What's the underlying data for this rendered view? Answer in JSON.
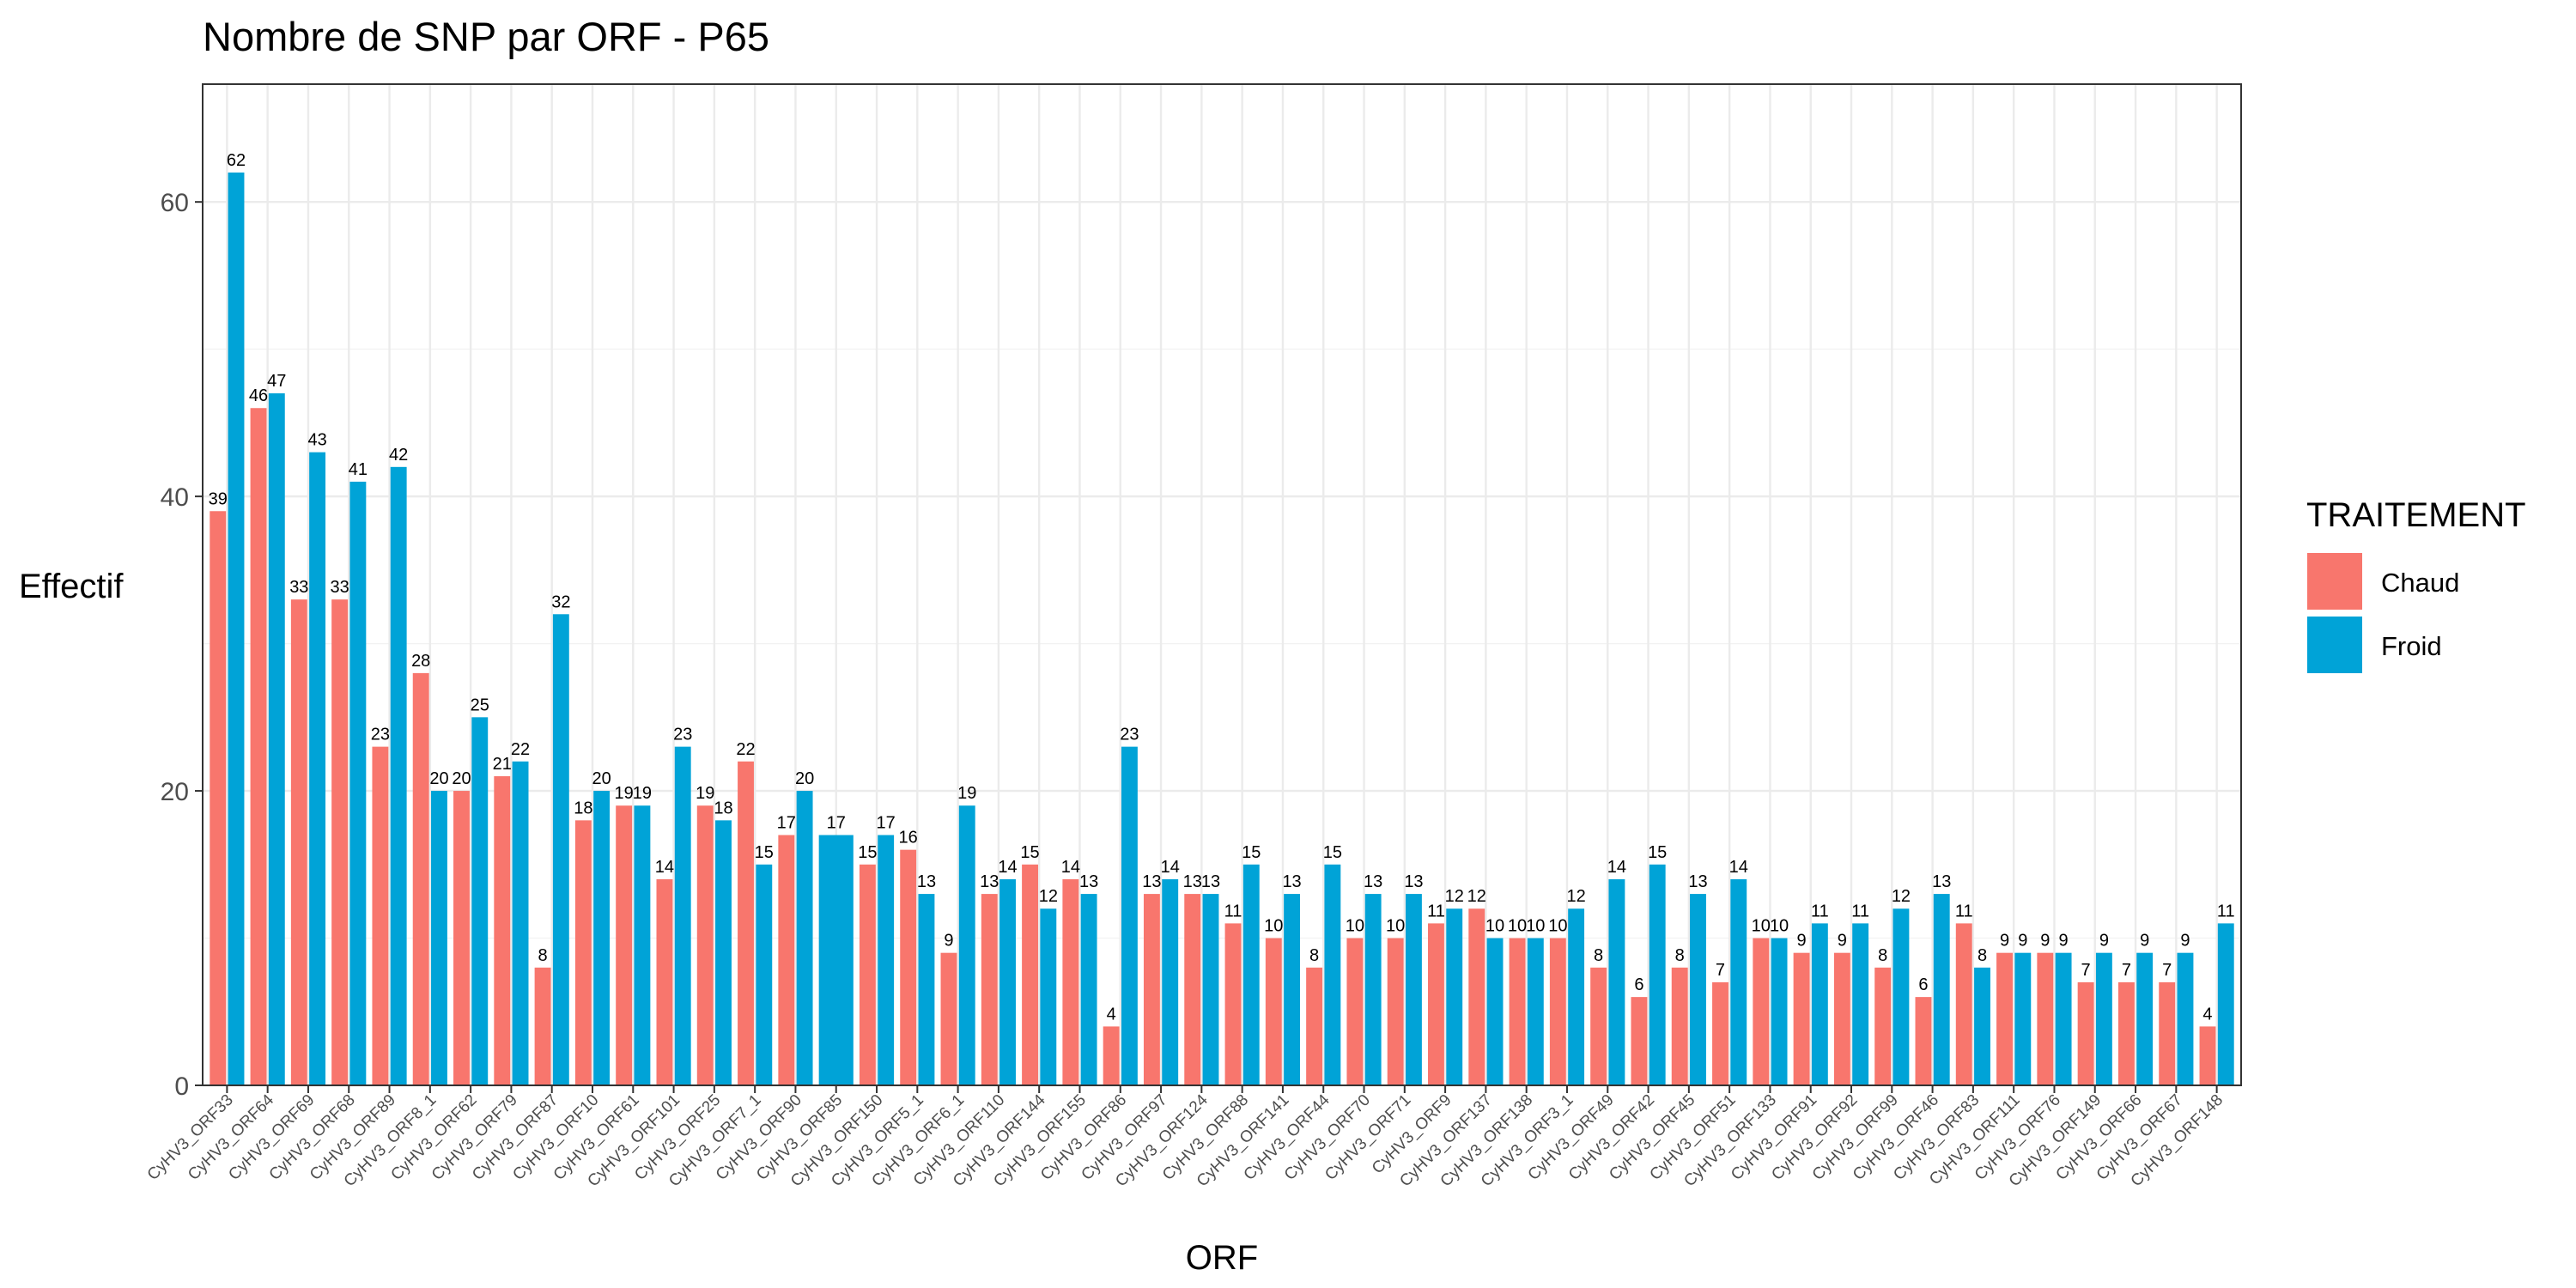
{
  "chart_data": {
    "type": "bar",
    "title": "Nombre de SNP par ORF - P65",
    "xlabel": "ORF",
    "ylabel": "Effectif",
    "ylim": [
      0,
      68
    ],
    "yticks": [
      0,
      20,
      40,
      60
    ],
    "grid": true,
    "legend_title": "TRAITEMENT",
    "legend_position": "right",
    "categories": [
      "CyHV3_ORF33",
      "CyHV3_ORF64",
      "CyHV3_ORF69",
      "CyHV3_ORF68",
      "CyHV3_ORF89",
      "CyHV3_ORF8_1",
      "CyHV3_ORF62",
      "CyHV3_ORF79",
      "CyHV3_ORF87",
      "CyHV3_ORF10",
      "CyHV3_ORF61",
      "CyHV3_ORF101",
      "CyHV3_ORF25",
      "CyHV3_ORF7_1",
      "CyHV3_ORF90",
      "CyHV3_ORF85",
      "CyHV3_ORF150",
      "CyHV3_ORF5_1",
      "CyHV3_ORF6_1",
      "CyHV3_ORF110",
      "CyHV3_ORF144",
      "CyHV3_ORF155",
      "CyHV3_ORF86",
      "CyHV3_ORF97",
      "CyHV3_ORF124",
      "CyHV3_ORF88",
      "CyHV3_ORF141",
      "CyHV3_ORF44",
      "CyHV3_ORF70",
      "CyHV3_ORF71",
      "CyHV3_ORF9",
      "CyHV3_ORF137",
      "CyHV3_ORF138",
      "CyHV3_ORF3_1",
      "CyHV3_ORF49",
      "CyHV3_ORF42",
      "CyHV3_ORF45",
      "CyHV3_ORF51",
      "CyHV3_ORF133",
      "CyHV3_ORF91",
      "CyHV3_ORF92",
      "CyHV3_ORF99",
      "CyHV3_ORF46",
      "CyHV3_ORF83",
      "CyHV3_ORF111",
      "CyHV3_ORF76",
      "CyHV3_ORF149",
      "CyHV3_ORF66",
      "CyHV3_ORF67",
      "CyHV3_ORF148"
    ],
    "series": [
      {
        "name": "Chaud",
        "color": "#F8766D",
        "values": [
          39,
          46,
          33,
          33,
          23,
          28,
          20,
          21,
          8,
          18,
          19,
          14,
          19,
          22,
          17,
          null,
          15,
          16,
          9,
          13,
          15,
          14,
          4,
          13,
          13,
          11,
          10,
          8,
          10,
          10,
          11,
          12,
          10,
          10,
          8,
          6,
          8,
          7,
          10,
          9,
          9,
          8,
          6,
          11,
          9,
          9,
          7,
          7,
          7,
          4
        ]
      },
      {
        "name": "Froid",
        "color": "#00A3D7",
        "values": [
          62,
          47,
          43,
          41,
          42,
          20,
          25,
          22,
          32,
          20,
          19,
          23,
          18,
          15,
          20,
          17,
          17,
          13,
          19,
          14,
          12,
          13,
          23,
          14,
          13,
          15,
          13,
          15,
          13,
          13,
          12,
          10,
          10,
          12,
          14,
          15,
          13,
          14,
          10,
          11,
          11,
          12,
          13,
          8,
          9,
          9,
          9,
          9,
          9,
          11
        ]
      }
    ]
  }
}
